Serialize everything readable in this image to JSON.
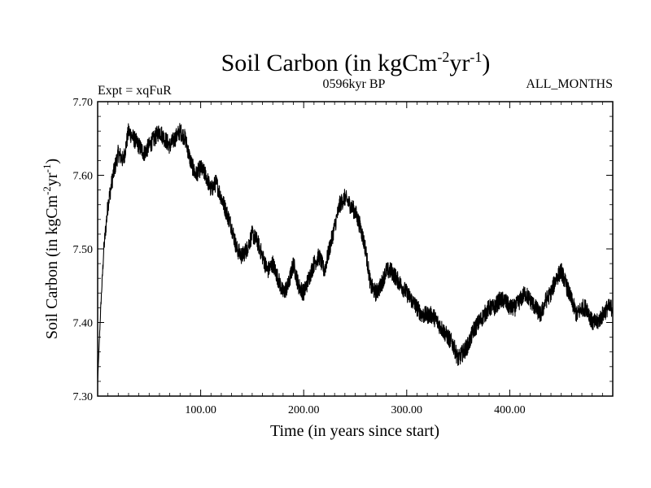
{
  "chart_data": {
    "type": "line",
    "title_main": "Soil Carbon (in kgCm",
    "title_exp1": "-2",
    "title_mid": "yr",
    "title_exp2": "-1",
    "title_end": ")",
    "expt_label": "Expt = xqFuR",
    "period_label": "0596kyr BP",
    "months_label": "ALL_MONTHS",
    "xlabel": "Time (in years since start)",
    "ylabel_main": "Soil Carbon (in kgCm",
    "ylabel_exp1": "-2",
    "ylabel_mid": "yr",
    "ylabel_exp2": "-1",
    "ylabel_end": ")",
    "xlim": [
      0,
      500
    ],
    "ylim": [
      7.3,
      7.7
    ],
    "xticks": [
      {
        "value": 100,
        "label": "100.00"
      },
      {
        "value": 200,
        "label": "200.00"
      },
      {
        "value": 300,
        "label": "300.00"
      },
      {
        "value": 400,
        "label": "400.00"
      }
    ],
    "yticks": [
      {
        "value": 7.3,
        "label": "7.30"
      },
      {
        "value": 7.4,
        "label": "7.40"
      },
      {
        "value": 7.5,
        "label": "7.50"
      },
      {
        "value": 7.6,
        "label": "7.60"
      },
      {
        "value": 7.7,
        "label": "7.70"
      }
    ],
    "noise_amplitude": 0.012,
    "series": [
      {
        "name": "Soil Carbon",
        "color": "#000000",
        "x": [
          0,
          3,
          6,
          10,
          15,
          20,
          25,
          30,
          35,
          40,
          45,
          50,
          55,
          60,
          65,
          70,
          75,
          80,
          85,
          90,
          95,
          100,
          105,
          110,
          115,
          120,
          125,
          130,
          135,
          140,
          145,
          150,
          155,
          160,
          165,
          170,
          175,
          180,
          185,
          190,
          195,
          200,
          205,
          210,
          215,
          220,
          225,
          230,
          235,
          240,
          245,
          250,
          255,
          260,
          265,
          270,
          275,
          280,
          285,
          290,
          295,
          300,
          305,
          310,
          315,
          320,
          325,
          330,
          335,
          340,
          345,
          350,
          355,
          360,
          365,
          370,
          375,
          380,
          385,
          390,
          395,
          400,
          405,
          410,
          415,
          420,
          425,
          430,
          435,
          440,
          445,
          450,
          455,
          460,
          465,
          470,
          475,
          480,
          485,
          490,
          495,
          500
        ],
        "y": [
          7.32,
          7.42,
          7.5,
          7.56,
          7.6,
          7.63,
          7.62,
          7.66,
          7.65,
          7.64,
          7.63,
          7.64,
          7.65,
          7.66,
          7.65,
          7.64,
          7.65,
          7.66,
          7.65,
          7.62,
          7.6,
          7.61,
          7.6,
          7.58,
          7.59,
          7.57,
          7.55,
          7.53,
          7.5,
          7.49,
          7.5,
          7.52,
          7.51,
          7.49,
          7.47,
          7.48,
          7.46,
          7.44,
          7.45,
          7.48,
          7.45,
          7.44,
          7.46,
          7.48,
          7.49,
          7.47,
          7.5,
          7.53,
          7.56,
          7.57,
          7.56,
          7.55,
          7.53,
          7.5,
          7.45,
          7.44,
          7.45,
          7.47,
          7.47,
          7.46,
          7.45,
          7.44,
          7.43,
          7.42,
          7.41,
          7.41,
          7.41,
          7.4,
          7.39,
          7.38,
          7.37,
          7.35,
          7.36,
          7.37,
          7.39,
          7.4,
          7.41,
          7.42,
          7.42,
          7.43,
          7.43,
          7.42,
          7.42,
          7.43,
          7.44,
          7.43,
          7.42,
          7.41,
          7.43,
          7.44,
          7.46,
          7.47,
          7.45,
          7.43,
          7.41,
          7.42,
          7.42,
          7.4,
          7.4,
          7.41,
          7.42,
          7.42
        ]
      }
    ]
  }
}
